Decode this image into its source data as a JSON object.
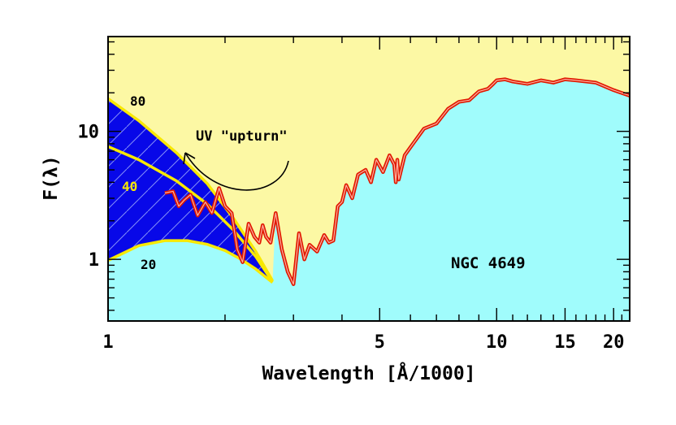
{
  "chart_data": {
    "type": "line",
    "title": "",
    "xlabel": "Wavelength [Å/1000]",
    "ylabel": "F(λ)",
    "xscale": "log",
    "yscale": "log",
    "xlim": [
      1,
      22
    ],
    "ylim": [
      0.33,
      55
    ],
    "xticks": [
      1,
      5,
      10,
      15,
      20
    ],
    "yticks": [
      1,
      10
    ],
    "grid": false,
    "annotations": {
      "target": "NGC 4649",
      "upturn": "UV \"upturn\"",
      "model_labels": [
        "80",
        "40",
        "20"
      ]
    },
    "colors": {
      "background_fill": "#fcf8a4",
      "continuum_fill": "#a0fcfc",
      "model_fill": "#0808e8",
      "model_curves": "#f8e800",
      "spectrum": "#e01800"
    },
    "series": [
      {
        "x": [
          1.0,
          1.2,
          1.5,
          1.8,
          2.1,
          2.4,
          2.65
        ],
        "y": [
          18.0,
          12.1,
          6.8,
          3.9,
          2.1,
          1.15,
          0.68
        ]
      },
      {
        "x": [
          1.0,
          1.2,
          1.5,
          1.8,
          2.1,
          2.4,
          2.65
        ],
        "y": [
          7.6,
          6.0,
          4.1,
          2.7,
          1.7,
          1.05,
          0.67
        ]
      },
      {
        "x": [
          1.0,
          1.2,
          1.4,
          1.6,
          1.8,
          2.0,
          2.2,
          2.4,
          2.65
        ],
        "y": [
          0.98,
          1.28,
          1.4,
          1.4,
          1.31,
          1.17,
          1.0,
          0.84,
          0.66
        ]
      },
      {
        "x": [
          1.4,
          1.47,
          1.52,
          1.57,
          1.63,
          1.7,
          1.78,
          1.85,
          1.93,
          2.0,
          2.08,
          2.15,
          2.22,
          2.3,
          2.38,
          2.45,
          2.5,
          2.55,
          2.62,
          2.7,
          2.8,
          2.9,
          3.0,
          3.1,
          3.2,
          3.3,
          3.45,
          3.6,
          3.7,
          3.8,
          3.85,
          3.9,
          4.0,
          4.1,
          4.25,
          4.4,
          4.6,
          4.75,
          4.9,
          5.1,
          5.3,
          5.45,
          5.5,
          5.55,
          5.6,
          5.8,
          6.0,
          6.5,
          7.0,
          7.5,
          8.0,
          8.5,
          9.0,
          9.5,
          9.8,
          10.0,
          10.5,
          11.0,
          12.0,
          13.0,
          14.0,
          15.0,
          16.0,
          18.0,
          20.0,
          22.0
        ],
        "y": [
          3.3,
          3.4,
          2.6,
          2.9,
          3.2,
          2.2,
          2.8,
          2.3,
          3.6,
          2.6,
          2.3,
          1.2,
          0.95,
          1.9,
          1.5,
          1.35,
          1.85,
          1.5,
          1.35,
          2.3,
          1.2,
          0.8,
          0.64,
          1.6,
          1.0,
          1.3,
          1.15,
          1.55,
          1.35,
          1.4,
          1.9,
          2.6,
          2.8,
          3.8,
          3.0,
          4.6,
          5.0,
          4.0,
          6.0,
          4.8,
          6.5,
          5.5,
          4.0,
          6.0,
          4.2,
          6.5,
          7.5,
          10.5,
          11.5,
          15.0,
          17.0,
          17.5,
          20.5,
          21.5,
          23.5,
          25.0,
          25.5,
          24.5,
          23.5,
          25.0,
          24.0,
          25.5,
          25.0,
          24.0,
          21.0,
          19.0
        ]
      }
    ]
  }
}
